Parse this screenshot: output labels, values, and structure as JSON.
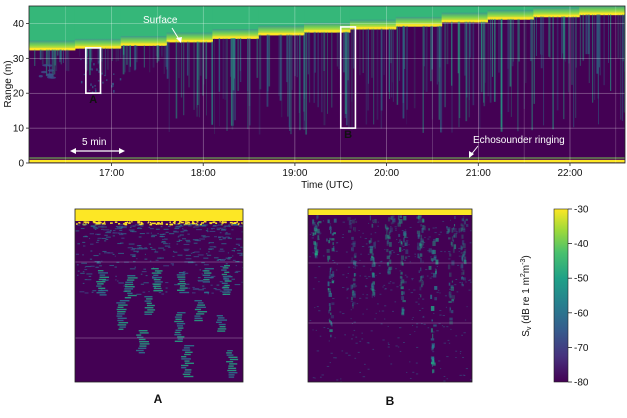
{
  "chart_data": [
    {
      "type": "heatmap",
      "name": "echogram-main",
      "xlabel": "Time (UTC)",
      "ylabel": "Range (m)",
      "x_ticks": [
        "17:00",
        "18:00",
        "19:00",
        "20:00",
        "21:00",
        "22:00"
      ],
      "y_ticks": [
        "0",
        "10",
        "20",
        "30",
        "40"
      ],
      "ylim": [
        0,
        45
      ],
      "xlim_hours": [
        16.1,
        22.6
      ],
      "grid": true,
      "surface_range_steps": [
        {
          "t": 16.1,
          "range": 32.5
        },
        {
          "t": 16.6,
          "range": 33.0
        },
        {
          "t": 17.1,
          "range": 33.8
        },
        {
          "t": 17.6,
          "range": 34.8
        },
        {
          "t": 18.1,
          "range": 35.8
        },
        {
          "t": 18.6,
          "range": 36.8
        },
        {
          "t": 19.1,
          "range": 37.6
        },
        {
          "t": 19.6,
          "range": 38.5
        },
        {
          "t": 20.1,
          "range": 39.3
        },
        {
          "t": 20.6,
          "range": 40.5
        },
        {
          "t": 21.1,
          "range": 41.3
        },
        {
          "t": 21.6,
          "range": 42.0
        },
        {
          "t": 22.1,
          "range": 42.6
        }
      ],
      "highlight_boxes": [
        {
          "label": "A",
          "t_start": 16.72,
          "t_end": 16.88,
          "range_min": 20,
          "range_max": 33
        },
        {
          "label": "B",
          "t_start": 19.5,
          "t_end": 19.66,
          "range_min": 10,
          "range_max": 39
        }
      ],
      "annotations": {
        "surface": "Surface",
        "echosounder": "Echosounder ringing",
        "scale": "5 min"
      }
    },
    {
      "type": "heatmap",
      "name": "panel-A",
      "label": "A"
    },
    {
      "type": "heatmap",
      "name": "panel-B",
      "label": "B"
    },
    {
      "type": "colorbar",
      "name": "sv-colorbar",
      "ylabel_main": "S",
      "ylabel_sub": "v",
      "ylabel_rest": " (dB re 1 m",
      "ylabel_sup1": "2",
      "ylabel_mid": "m",
      "ylabel_sup2": "-3",
      "ylabel_end": ")",
      "ticks": [
        "-30",
        "-40",
        "-50",
        "-60",
        "-70",
        "-80"
      ],
      "range": [
        -80,
        -30
      ]
    }
  ],
  "colors": {
    "bg": "#440154",
    "mid": "#21918c",
    "high": "#fde725"
  }
}
